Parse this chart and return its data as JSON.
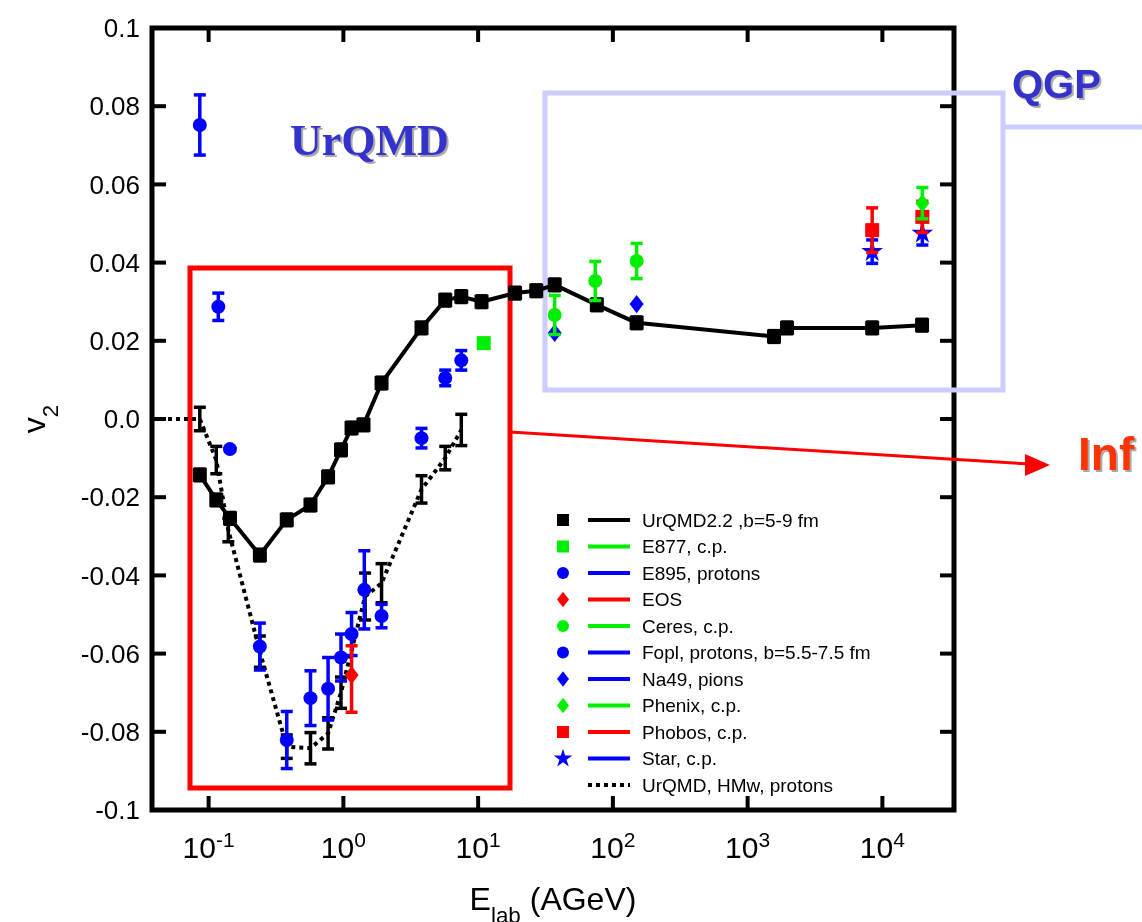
{
  "chart_data": {
    "type": "scatter",
    "xlabel": "E$_{lab}$ (AGeV)",
    "ylabel": "v$_{2}$",
    "log": "x",
    "xlim": [
      0.038,
      34000
    ],
    "ylim": [
      -0.1,
      0.1
    ],
    "xticks": [
      {
        "value": 0.1,
        "label": "10$^{-1}$"
      },
      {
        "value": 1,
        "label": "10$^{0}$"
      },
      {
        "value": 10,
        "label": "10$^{1}$"
      },
      {
        "value": 100,
        "label": "10$^{2}$"
      },
      {
        "value": 1000,
        "label": "10$^{3}$"
      },
      {
        "value": 10000,
        "label": "10$^{4}$"
      }
    ],
    "yticks": [
      {
        "value": -0.1,
        "label": "-0.1"
      },
      {
        "value": -0.08,
        "label": "-0.08"
      },
      {
        "value": -0.06,
        "label": "-0.06"
      },
      {
        "value": -0.04,
        "label": "-0.04"
      },
      {
        "value": -0.02,
        "label": "-0.02"
      },
      {
        "value": 0,
        "label": "0.0"
      },
      {
        "value": 0.02,
        "label": "0.02"
      },
      {
        "value": 0.04,
        "label": "0.04"
      },
      {
        "value": 0.06,
        "label": "0.06"
      },
      {
        "value": 0.08,
        "label": "0.08"
      },
      {
        "value": 0.1,
        "label": "0.1"
      }
    ],
    "legend": "bottom right",
    "annotations": [
      "UrQMD",
      "QGP",
      "Inf"
    ],
    "series": [
      {
        "name": "UrQMD2.2 ,b=5-9 fm",
        "type": "line",
        "color": "#000000",
        "marker": "square",
        "line_style": "solid",
        "x": [
          0.086,
          0.114,
          0.144,
          0.24,
          0.38,
          0.57,
          0.77,
          0.96,
          1.15,
          1.41,
          1.92,
          3.8,
          5.7,
          7.5,
          10.6,
          18.8,
          27,
          37,
          76,
          150,
          1570,
          1960,
          8400,
          19700
        ],
        "values": [
          -0.0143,
          -0.0207,
          -0.0254,
          -0.0348,
          -0.0258,
          -0.022,
          -0.0148,
          -0.0079,
          -0.0023,
          -0.0015,
          0.0092,
          0.0233,
          0.0304,
          0.0313,
          0.03,
          0.0322,
          0.0328,
          0.0343,
          0.0292,
          0.0246,
          0.0211,
          0.0233,
          0.0233,
          0.024
        ],
        "errors": [
          0.0015,
          0.0015,
          0.0015,
          0.0015,
          0.0015,
          0.0015,
          0.0015,
          0.0015,
          0.0015,
          0.0015,
          0.0015,
          0.0015,
          0.0015,
          0.0015,
          0.0015,
          0.0015,
          0.0015,
          0.0015,
          0.0015,
          0.0015,
          0.0015,
          0.0015,
          0.0015,
          0.0015
        ]
      },
      {
        "name": "E877, c.p.",
        "type": "scatter",
        "color": "#00ee00",
        "marker": "square",
        "x": [
          11
        ],
        "values": [
          0.0194
        ],
        "errors": [
          0.001
        ]
      },
      {
        "name": "E895, protons",
        "type": "scatter",
        "color": "#0000ff",
        "marker": "circle",
        "x": [
          1.92,
          3.8,
          5.7,
          7.5
        ],
        "values": [
          -0.0504,
          -0.0049,
          0.0105,
          0.015
        ],
        "errors": [
          0.003,
          0.0025,
          0.002,
          0.0025
        ]
      },
      {
        "name": "EOS",
        "type": "scatter",
        "color": "#ff0000",
        "marker": "diamond",
        "x": [
          1.15
        ],
        "values": [
          -0.0655
        ],
        "errors": [
          [
            -0.075,
            -0.058
          ]
        ]
      },
      {
        "name": "Ceres, c.p.",
        "type": "scatter",
        "color": "#00ee00",
        "marker": "circle",
        "x": [
          37,
          74,
          150
        ],
        "values": [
          0.0266,
          0.0353,
          0.0404
        ],
        "errors": [
          0.005,
          0.005,
          0.0045
        ]
      },
      {
        "name": "Fopl, protons, b=5.5-7.5 fm",
        "type": "scatter",
        "color": "#0000ff",
        "marker": "circle",
        "x": [
          0.086,
          0.118,
          0.144,
          0.24,
          0.38,
          0.57,
          0.77,
          0.96,
          1.15,
          1.43
        ],
        "values": [
          0.0752,
          0.0287,
          -0.0077,
          -0.0582,
          -0.0821,
          -0.0714,
          -0.069,
          -0.061,
          -0.055,
          -0.0437
        ],
        "errors": [
          0.0077,
          0.0035,
          null,
          0.006,
          0.0073,
          0.007,
          0.008,
          0.006,
          0.0055,
          0.01
        ]
      },
      {
        "name": "Na49, pions",
        "type": "scatter",
        "color": "#0000ff",
        "marker": "diamond",
        "x": [
          37,
          150
        ],
        "values": [
          0.022,
          0.0294
        ],
        "errors": [
          null,
          null
        ]
      },
      {
        "name": "Phenix, c.p.",
        "type": "scatter",
        "color": "#00ee00",
        "marker": "diamond",
        "x": [
          19800
        ],
        "values": [
          0.0552
        ],
        "errors": [
          0.004
        ]
      },
      {
        "name": "Phobos, c.p.",
        "type": "scatter",
        "color": "#ff0000",
        "marker": "square",
        "x": [
          8400,
          19800
        ],
        "values": [
          0.0483,
          0.0517
        ],
        "errors": [
          0.0057,
          0.004
        ]
      },
      {
        "name": "Star, c.p.",
        "type": "scatter",
        "color": "#0000ff",
        "marker": "star",
        "x": [
          8400,
          19800
        ],
        "values": [
          0.0428,
          0.0475
        ],
        "errors": [
          0.003,
          0.003
        ]
      },
      {
        "name": "UrQMD, HMw, protons",
        "type": "line",
        "color": "#000000",
        "marker": "none",
        "line_style": "dotted",
        "x": [
          0.038,
          0.086,
          0.114,
          0.14,
          0.24,
          0.38,
          0.57,
          0.77,
          0.96,
          1.45,
          1.92,
          3.8,
          5.7,
          7.5
        ],
        "values": [
          0,
          0,
          -0.0105,
          -0.0284,
          -0.0595,
          -0.0838,
          -0.0842,
          -0.0804,
          -0.07,
          -0.0454,
          -0.042,
          -0.018,
          -0.01,
          -0.0028
        ],
        "errors": [
          null,
          0.003,
          0.0035,
          0.003,
          0.004,
          0.003,
          0.004,
          0.004,
          0.004,
          0.006,
          0.005,
          0.0035,
          0.003,
          0.004
        ]
      }
    ]
  }
}
